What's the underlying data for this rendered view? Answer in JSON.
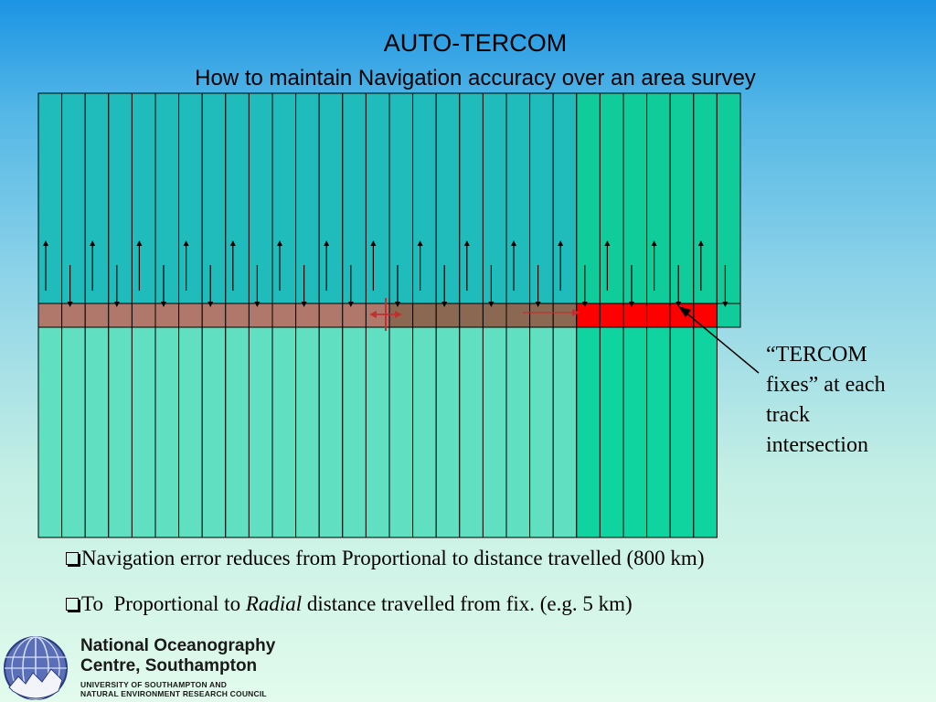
{
  "title": "AUTO-TERCOM",
  "subtitle": "How to maintain Navigation accuracy over an area survey",
  "callout": {
    "lines": [
      "“TERCOM",
      "fixes” at each",
      "track",
      "intersection"
    ]
  },
  "bullets": [
    {
      "text": "Navigation error reduces from Proportional to distance travelled (800 km)"
    },
    {
      "prefix": "To  Proportional to ",
      "emphasis": "Radial",
      "suffix": " distance travelled from fix. (e.g. 5 km)"
    }
  ],
  "logo": {
    "line1": "National Oceanography",
    "line2": "Centre, Southampton",
    "line3": "UNIVERSITY OF SOUTHAMPTON AND",
    "line4": "NATURAL ENVIRONMENT RESEARCH COUNCIL"
  },
  "diagram": {
    "survey_track_count": 30,
    "tercom_track_count": 7,
    "cross_track_segments": 30,
    "colors": {
      "track_fill": "#20bcbc",
      "lower_fill": "#60e0c0",
      "tercom_track_fill": "#10cc9a",
      "tercom_lower_fill": "#10d4a0",
      "cross_track_early": "#b0786a",
      "cross_track_mid": "#8a6852",
      "tercom_fix": "#ff0000",
      "outline": "#000000"
    },
    "icons": [
      "up-arrow-icon",
      "down-arrow-icon",
      "pointer-arrow-icon"
    ]
  }
}
